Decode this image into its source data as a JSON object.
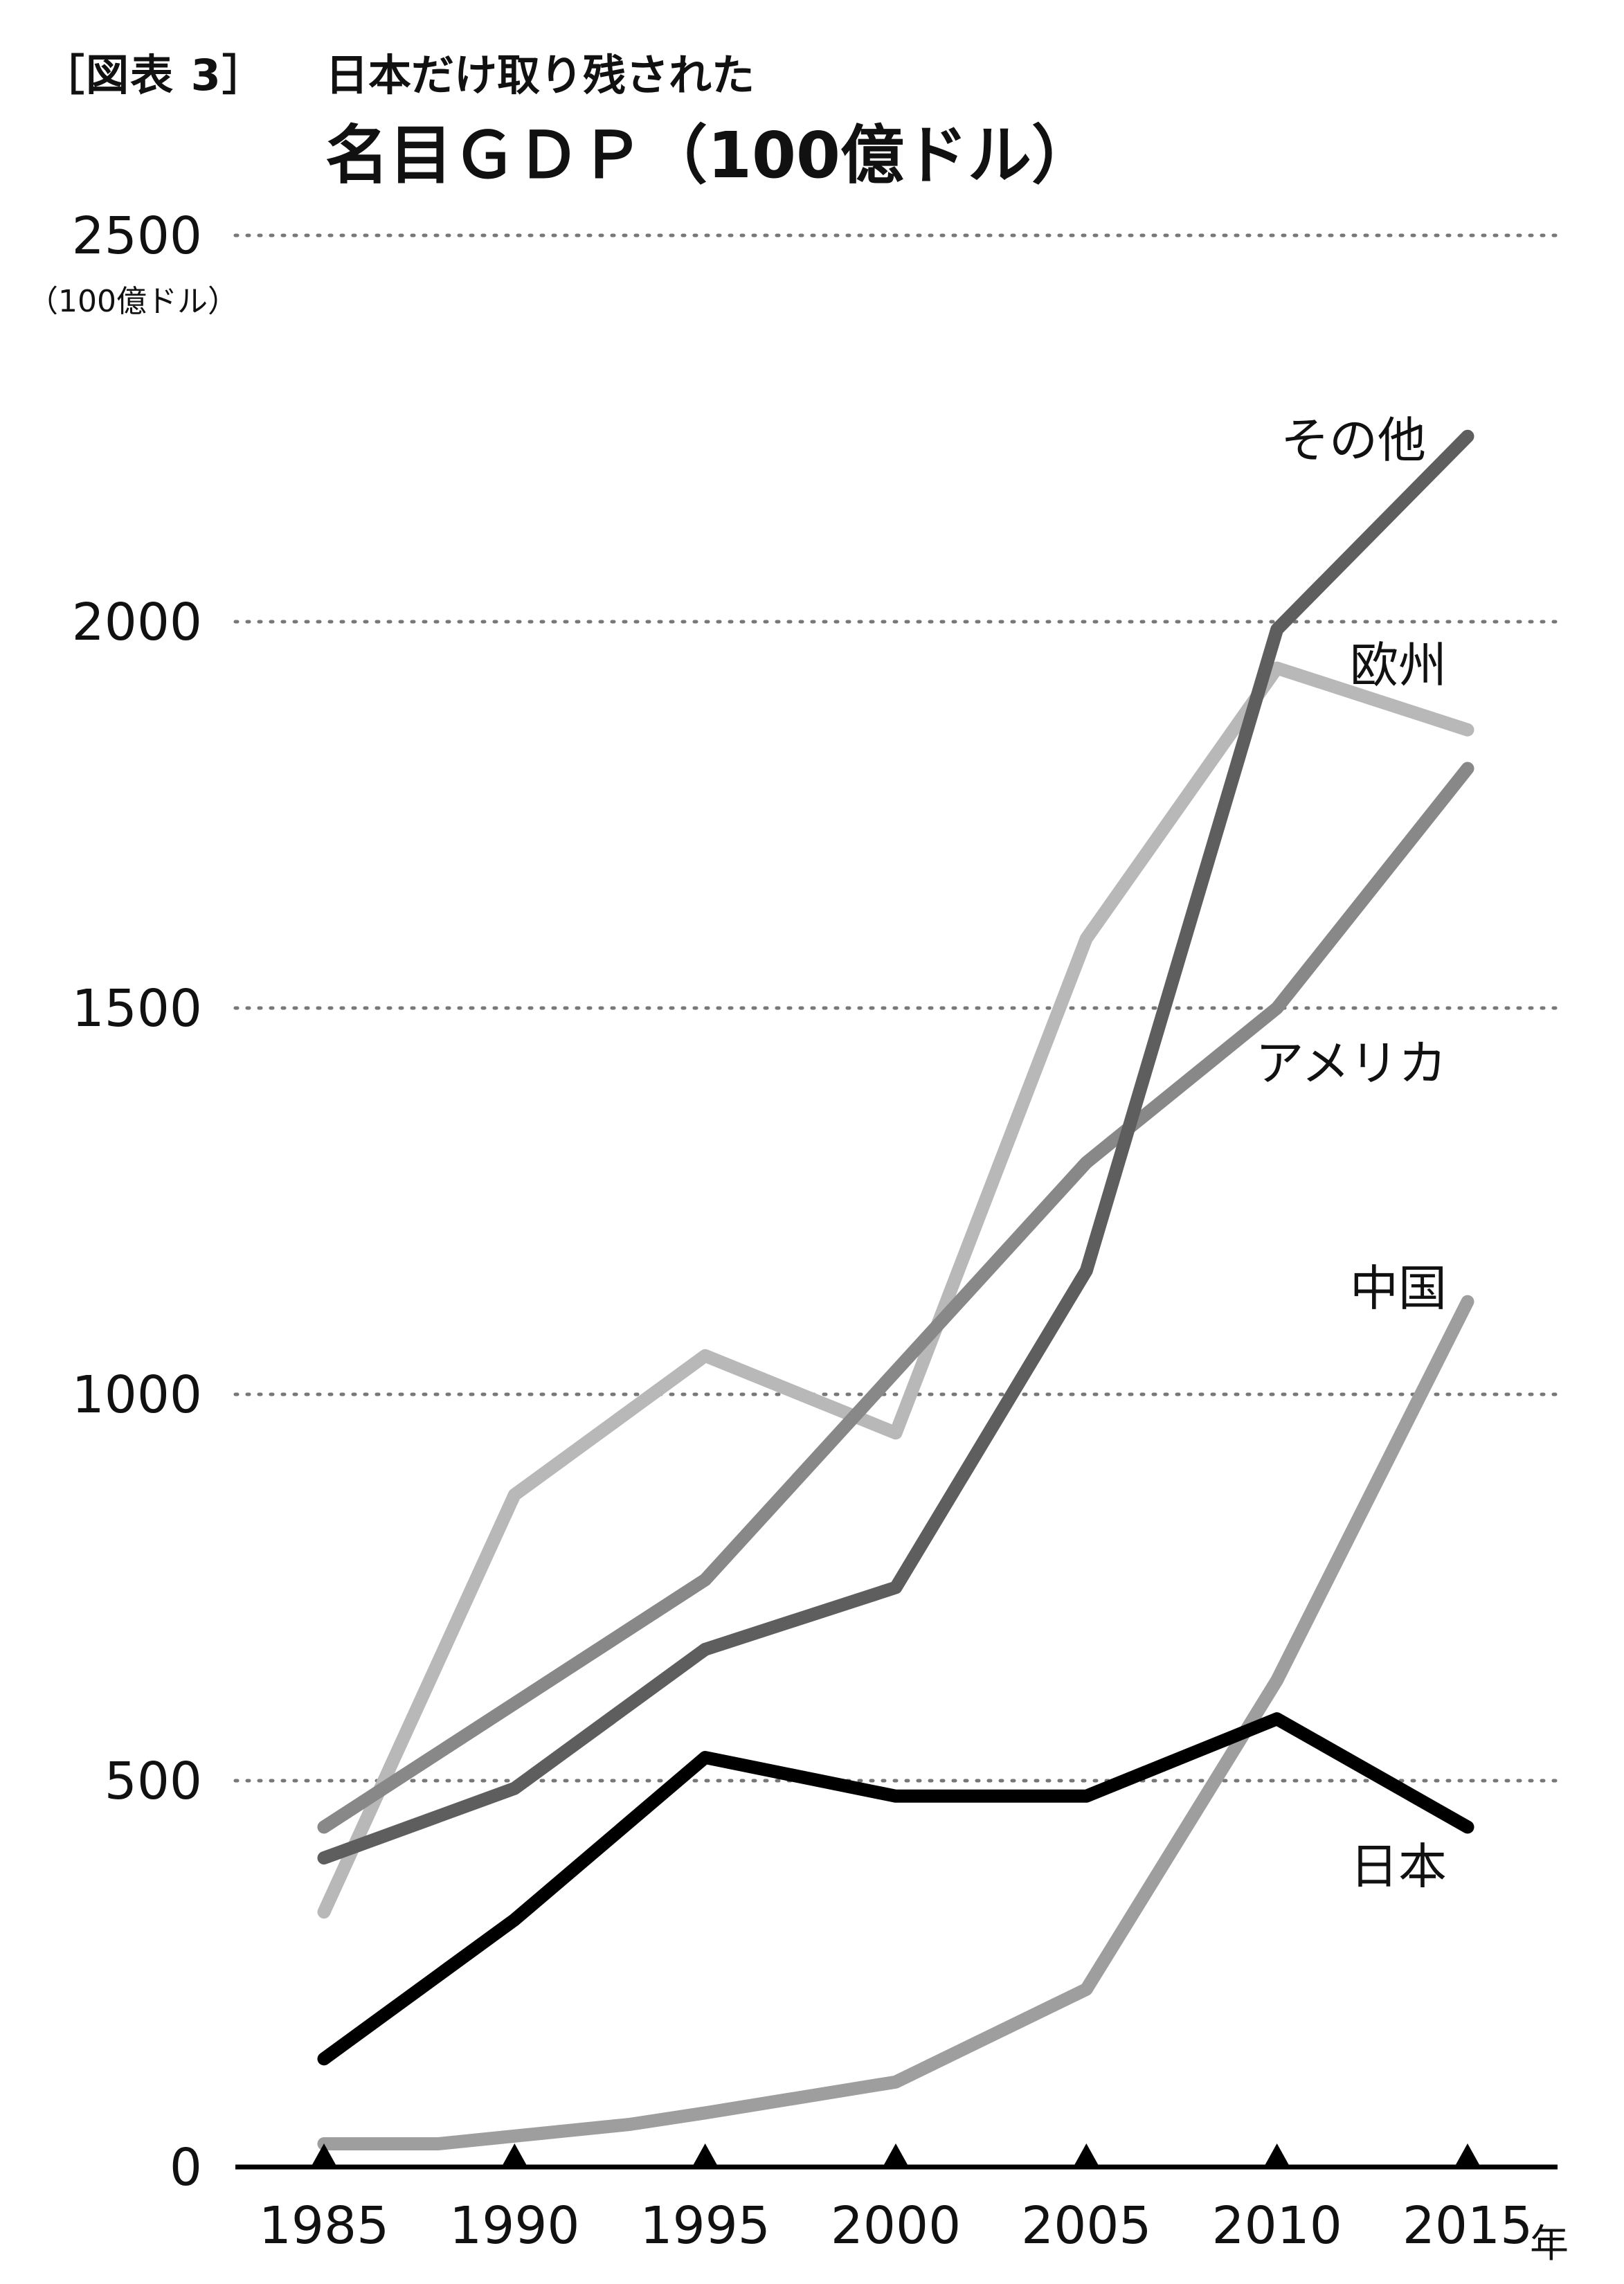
{
  "header": {
    "figure_label": "［図表 3］",
    "subtitle": "日本だけ取り残された",
    "title": "名目ＧＤＰ（100億ドル）"
  },
  "chart_data": {
    "type": "line",
    "y_unit_label": "（100億ドル）",
    "x_unit_label": "年",
    "ylim": [
      0,
      2500
    ],
    "yticks": [
      0,
      500,
      1000,
      1500,
      2000,
      2500
    ],
    "xticks": [
      1985,
      1990,
      1995,
      2000,
      2005,
      2010,
      2015
    ],
    "xlim": [
      1985,
      2015
    ],
    "grid": true,
    "series": [
      {
        "name": "欧州",
        "color": "#b8b8b8",
        "x": [
          1985,
          1990,
          1995,
          2000,
          2005,
          2010,
          2015
        ],
        "y": [
          330,
          870,
          1050,
          950,
          1590,
          1940,
          1860
        ]
      },
      {
        "name": "中国",
        "color": "#9e9e9e",
        "x": [
          1985,
          1988,
          1993,
          1995,
          2000,
          2005,
          2010,
          2015
        ],
        "y": [
          30,
          30,
          55,
          70,
          110,
          230,
          630,
          1120
        ]
      },
      {
        "name": "アメリカ",
        "color": "#888888",
        "x": [
          1985,
          1995,
          2005,
          2010,
          2015
        ],
        "y": [
          440,
          760,
          1300,
          1500,
          1810
        ]
      },
      {
        "name": "その他",
        "color": "#5e5e5e",
        "x": [
          1985,
          1990,
          1995,
          2000,
          2005,
          2010,
          2015
        ],
        "y": [
          400,
          490,
          670,
          750,
          1160,
          1990,
          2240
        ]
      },
      {
        "name": "日本",
        "color": "#000000",
        "x": [
          1985,
          1990,
          1995,
          2000,
          2005,
          2010,
          2015
        ],
        "y": [
          140,
          320,
          530,
          480,
          480,
          580,
          440
        ]
      }
    ]
  }
}
